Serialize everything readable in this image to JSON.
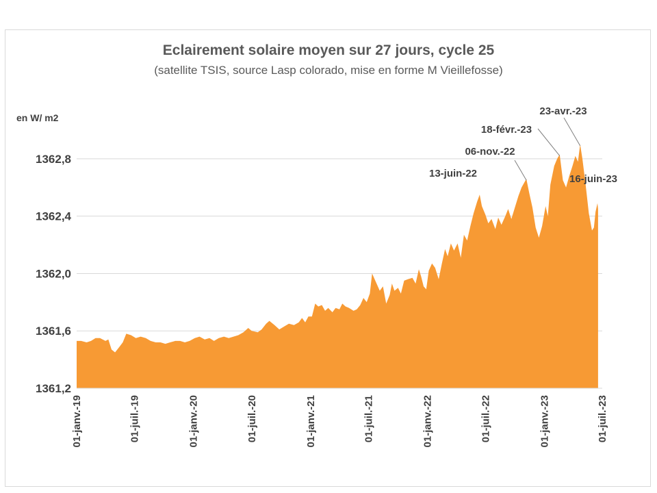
{
  "chart_data": {
    "type": "area",
    "title": "Eclairement solaire moyen sur 27 jours, cycle 25",
    "subtitle": "(satellite TSIS, source Lasp colorado, mise en forme M Vieillefosse)",
    "ylabel": "en W/ m2",
    "xlabel": "",
    "ylim": [
      1361.2,
      1363.0
    ],
    "y_ticks": [
      {
        "value": 1361.2,
        "label": "1361,2"
      },
      {
        "value": 1361.6,
        "label": "1361,6"
      },
      {
        "value": 1362.0,
        "label": "1362,0"
      },
      {
        "value": 1362.4,
        "label": "1362,4"
      },
      {
        "value": 1362.8,
        "label": "1362,8"
      }
    ],
    "grid": true,
    "legend": "none",
    "color": "#f79a34",
    "x_start": "2019-01-01",
    "x_end": "2023-07-01",
    "x_ticks": [
      {
        "date": "2019-01-01",
        "label": "01-janv.-19"
      },
      {
        "date": "2019-07-01",
        "label": "01-juil.-19"
      },
      {
        "date": "2020-01-01",
        "label": "01-janv.-20"
      },
      {
        "date": "2020-07-01",
        "label": "01-juil.-20"
      },
      {
        "date": "2021-01-01",
        "label": "01-janv.-21"
      },
      {
        "date": "2021-07-01",
        "label": "01-juil.-21"
      },
      {
        "date": "2022-01-01",
        "label": "01-janv.-22"
      },
      {
        "date": "2022-07-01",
        "label": "01-juil.-22"
      },
      {
        "date": "2023-01-01",
        "label": "01-janv.-23"
      },
      {
        "date": "2023-07-01",
        "label": "01-juil.-23"
      }
    ],
    "series": [
      {
        "points": [
          [
            "2019-01-01",
            1361.53
          ],
          [
            "2019-01-15",
            1361.53
          ],
          [
            "2019-02-01",
            1361.52
          ],
          [
            "2019-02-15",
            1361.53
          ],
          [
            "2019-03-01",
            1361.55
          ],
          [
            "2019-03-15",
            1361.55
          ],
          [
            "2019-04-01",
            1361.53
          ],
          [
            "2019-04-10",
            1361.54
          ],
          [
            "2019-04-20",
            1361.47
          ],
          [
            "2019-05-01",
            1361.45
          ],
          [
            "2019-05-15",
            1361.49
          ],
          [
            "2019-05-25",
            1361.52
          ],
          [
            "2019-06-05",
            1361.58
          ],
          [
            "2019-06-20",
            1361.57
          ],
          [
            "2019-07-05",
            1361.55
          ],
          [
            "2019-07-20",
            1361.56
          ],
          [
            "2019-08-05",
            1361.55
          ],
          [
            "2019-08-20",
            1361.53
          ],
          [
            "2019-09-05",
            1361.52
          ],
          [
            "2019-09-20",
            1361.52
          ],
          [
            "2019-10-05",
            1361.51
          ],
          [
            "2019-10-20",
            1361.52
          ],
          [
            "2019-11-05",
            1361.53
          ],
          [
            "2019-11-20",
            1361.53
          ],
          [
            "2019-12-05",
            1361.52
          ],
          [
            "2019-12-20",
            1361.53
          ],
          [
            "2020-01-05",
            1361.55
          ],
          [
            "2020-01-20",
            1361.56
          ],
          [
            "2020-02-05",
            1361.54
          ],
          [
            "2020-02-20",
            1361.55
          ],
          [
            "2020-03-05",
            1361.53
          ],
          [
            "2020-03-20",
            1361.55
          ],
          [
            "2020-04-05",
            1361.56
          ],
          [
            "2020-04-20",
            1361.55
          ],
          [
            "2020-05-05",
            1361.56
          ],
          [
            "2020-05-20",
            1361.57
          ],
          [
            "2020-06-05",
            1361.59
          ],
          [
            "2020-06-20",
            1361.62
          ],
          [
            "2020-07-01",
            1361.6
          ],
          [
            "2020-07-20",
            1361.59
          ],
          [
            "2020-08-01",
            1361.61
          ],
          [
            "2020-08-15",
            1361.65
          ],
          [
            "2020-08-25",
            1361.67
          ],
          [
            "2020-09-10",
            1361.64
          ],
          [
            "2020-09-25",
            1361.61
          ],
          [
            "2020-10-10",
            1361.63
          ],
          [
            "2020-10-25",
            1361.65
          ],
          [
            "2020-11-10",
            1361.64
          ],
          [
            "2020-11-25",
            1361.66
          ],
          [
            "2020-12-05",
            1361.69
          ],
          [
            "2020-12-15",
            1361.66
          ],
          [
            "2020-12-25",
            1361.7
          ],
          [
            "2021-01-05",
            1361.7
          ],
          [
            "2021-01-15",
            1361.79
          ],
          [
            "2021-01-25",
            1361.77
          ],
          [
            "2021-02-05",
            1361.78
          ],
          [
            "2021-02-15",
            1361.74
          ],
          [
            "2021-02-25",
            1361.76
          ],
          [
            "2021-03-10",
            1361.73
          ],
          [
            "2021-03-20",
            1361.76
          ],
          [
            "2021-04-01",
            1361.75
          ],
          [
            "2021-04-10",
            1361.79
          ],
          [
            "2021-04-20",
            1361.77
          ],
          [
            "2021-05-01",
            1361.76
          ],
          [
            "2021-05-15",
            1361.74
          ],
          [
            "2021-05-25",
            1361.75
          ],
          [
            "2021-06-05",
            1361.78
          ],
          [
            "2021-06-15",
            1361.83
          ],
          [
            "2021-06-25",
            1361.8
          ],
          [
            "2021-07-05",
            1361.86
          ],
          [
            "2021-07-12",
            1362.0
          ],
          [
            "2021-07-20",
            1361.96
          ],
          [
            "2021-07-28",
            1361.92
          ],
          [
            "2021-08-05",
            1361.88
          ],
          [
            "2021-08-15",
            1361.91
          ],
          [
            "2021-08-25",
            1361.79
          ],
          [
            "2021-09-05",
            1361.85
          ],
          [
            "2021-09-12",
            1361.93
          ],
          [
            "2021-09-20",
            1361.88
          ],
          [
            "2021-10-01",
            1361.9
          ],
          [
            "2021-10-10",
            1361.86
          ],
          [
            "2021-10-20",
            1361.95
          ],
          [
            "2021-11-01",
            1361.96
          ],
          [
            "2021-11-15",
            1361.97
          ],
          [
            "2021-11-25",
            1361.93
          ],
          [
            "2021-12-05",
            1362.03
          ],
          [
            "2021-12-12",
            1361.98
          ],
          [
            "2021-12-20",
            1361.91
          ],
          [
            "2021-12-28",
            1361.89
          ],
          [
            "2022-01-05",
            1362.02
          ],
          [
            "2022-01-15",
            1362.07
          ],
          [
            "2022-01-25",
            1362.04
          ],
          [
            "2022-02-05",
            1361.96
          ],
          [
            "2022-02-15",
            1362.07
          ],
          [
            "2022-02-25",
            1362.17
          ],
          [
            "2022-03-05",
            1362.12
          ],
          [
            "2022-03-15",
            1362.21
          ],
          [
            "2022-03-25",
            1362.16
          ],
          [
            "2022-04-05",
            1362.21
          ],
          [
            "2022-04-15",
            1362.11
          ],
          [
            "2022-04-25",
            1362.27
          ],
          [
            "2022-05-05",
            1362.23
          ],
          [
            "2022-05-15",
            1362.33
          ],
          [
            "2022-05-25",
            1362.42
          ],
          [
            "2022-06-05",
            1362.5
          ],
          [
            "2022-06-13",
            1362.55
          ],
          [
            "2022-06-20",
            1362.47
          ],
          [
            "2022-07-01",
            1362.41
          ],
          [
            "2022-07-10",
            1362.35
          ],
          [
            "2022-07-20",
            1362.38
          ],
          [
            "2022-08-01",
            1362.31
          ],
          [
            "2022-08-10",
            1362.39
          ],
          [
            "2022-08-20",
            1362.34
          ],
          [
            "2022-09-01",
            1362.4
          ],
          [
            "2022-09-10",
            1362.45
          ],
          [
            "2022-09-20",
            1362.38
          ],
          [
            "2022-10-01",
            1362.46
          ],
          [
            "2022-10-12",
            1362.54
          ],
          [
            "2022-10-22",
            1362.6
          ],
          [
            "2022-11-06",
            1362.66
          ],
          [
            "2022-11-15",
            1362.56
          ],
          [
            "2022-11-25",
            1362.46
          ],
          [
            "2022-12-05",
            1362.32
          ],
          [
            "2022-12-15",
            1362.25
          ],
          [
            "2022-12-25",
            1362.33
          ],
          [
            "2023-01-05",
            1362.47
          ],
          [
            "2023-01-12",
            1362.4
          ],
          [
            "2023-01-20",
            1362.62
          ],
          [
            "2023-02-01",
            1362.75
          ],
          [
            "2023-02-10",
            1362.8
          ],
          [
            "2023-02-18",
            1362.83
          ],
          [
            "2023-02-28",
            1362.65
          ],
          [
            "2023-03-10",
            1362.6
          ],
          [
            "2023-03-20",
            1362.68
          ],
          [
            "2023-03-30",
            1362.75
          ],
          [
            "2023-04-08",
            1362.82
          ],
          [
            "2023-04-16",
            1362.78
          ],
          [
            "2023-04-23",
            1362.9
          ],
          [
            "2023-04-30",
            1362.8
          ],
          [
            "2023-05-10",
            1362.62
          ],
          [
            "2023-05-20",
            1362.42
          ],
          [
            "2023-05-30",
            1362.3
          ],
          [
            "2023-06-05",
            1362.32
          ],
          [
            "2023-06-10",
            1362.43
          ],
          [
            "2023-06-16",
            1362.49
          ],
          [
            "2023-06-18",
            1362.45
          ]
        ]
      }
    ],
    "annotations": [
      {
        "label": "13-juin-22",
        "date": "2022-06-13",
        "value": 1362.55
      },
      {
        "label": "06-nov.-22",
        "date": "2022-11-06",
        "value": 1362.66
      },
      {
        "label": "18-févr.-23",
        "date": "2023-02-18",
        "value": 1362.83
      },
      {
        "label": "23-avr.-23",
        "date": "2023-04-23",
        "value": 1362.9
      },
      {
        "label": "16-juin-23",
        "date": "2023-06-16",
        "value": 1362.49
      }
    ]
  }
}
